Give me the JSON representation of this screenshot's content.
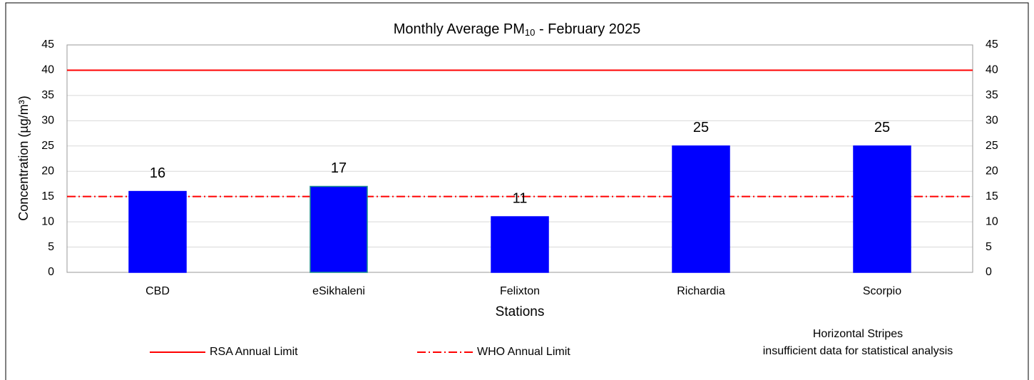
{
  "chart_data": {
    "type": "bar",
    "title": [
      "Monthly Average  PM",
      "10",
      " - February  2025"
    ],
    "xlabel": "Stations",
    "ylabel": "Concentration (µg/m³)",
    "categories": [
      "CBD",
      "eSikhaleni",
      "Felixton",
      "Richardia",
      "Scorpio"
    ],
    "values": [
      16,
      17,
      11,
      25,
      25
    ],
    "color": "#0000ff",
    "edgecolors": [
      "#0000ff",
      "#1a8c8c",
      "#0000ff",
      "#0000ff",
      "#0000ff"
    ],
    "ylim": [
      0,
      45
    ],
    "yticks": [
      0,
      5,
      10,
      15,
      20,
      25,
      30,
      35,
      40,
      45
    ],
    "y2lim": [
      0,
      45
    ],
    "y2ticks": [
      0,
      5,
      10,
      15,
      20,
      25,
      30,
      35,
      40,
      45
    ],
    "grid": true,
    "reference_lines": [
      {
        "name": "RSA Annual Limit",
        "value": 40,
        "color": "#ff0000",
        "style": "solid"
      },
      {
        "name": "WHO Annual Limit",
        "value": 15,
        "color": "#ff0000",
        "style": "dashdot"
      }
    ],
    "note": [
      "Horizontal Stripes",
      "insufficient data for statistical analysis"
    ]
  }
}
